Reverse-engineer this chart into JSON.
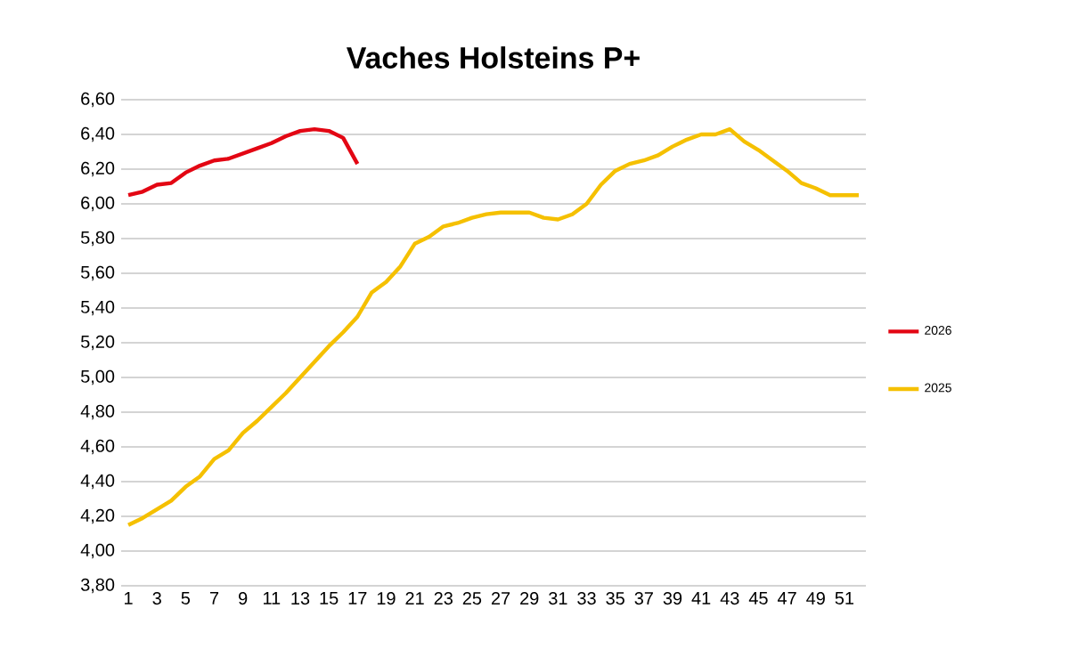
{
  "chart_data": {
    "type": "line",
    "title": "Vaches Holsteins P+",
    "categories": [
      "1",
      null,
      "3",
      null,
      "5",
      null,
      "7",
      null,
      "9",
      null,
      "11",
      null,
      "13",
      null,
      "15",
      null,
      "17",
      null,
      "19",
      null,
      "21",
      null,
      "23",
      null,
      "25",
      null,
      "27",
      null,
      "29",
      null,
      "31",
      null,
      "33",
      null,
      "35",
      null,
      "37",
      null,
      "39",
      null,
      "41",
      null,
      "43",
      null,
      "45",
      null,
      "47",
      null,
      "49",
      null,
      "51",
      null
    ],
    "series": [
      {
        "name": "2026",
        "color": "#e30613",
        "values": [
          6.05,
          6.07,
          6.11,
          6.12,
          6.18,
          6.22,
          6.25,
          6.26,
          6.29,
          6.32,
          6.35,
          6.39,
          6.42,
          6.43,
          6.42,
          6.38,
          6.23,
          null,
          null,
          null,
          null,
          null,
          null,
          null,
          null,
          null,
          null,
          null,
          null,
          null,
          null,
          null,
          null,
          null,
          null,
          null,
          null,
          null,
          null,
          null,
          null,
          null,
          null,
          null,
          null,
          null,
          null,
          null,
          null,
          null,
          null,
          null
        ]
      },
      {
        "name": "2025",
        "color": "#f5c000",
        "values": [
          4.15,
          4.19,
          4.24,
          4.29,
          4.37,
          4.43,
          4.53,
          4.58,
          4.68,
          4.75,
          4.83,
          4.91,
          5.0,
          5.09,
          5.18,
          5.26,
          5.35,
          5.49,
          5.55,
          5.64,
          5.77,
          5.81,
          5.87,
          5.89,
          5.92,
          5.94,
          5.95,
          5.95,
          5.95,
          5.92,
          5.91,
          5.94,
          6.0,
          6.11,
          6.19,
          6.23,
          6.25,
          6.28,
          6.33,
          6.37,
          6.4,
          6.4,
          6.43,
          6.36,
          6.31,
          6.25,
          6.19,
          6.12,
          6.09,
          6.05,
          6.05,
          6.05
        ]
      }
    ],
    "ylim": [
      3.8,
      6.6
    ],
    "yticks": [
      {
        "value": 3.8,
        "label": "3,80"
      },
      {
        "value": 4.0,
        "label": "4,00"
      },
      {
        "value": 4.2,
        "label": "4,20"
      },
      {
        "value": 4.4,
        "label": "4,40"
      },
      {
        "value": 4.6,
        "label": "4,60"
      },
      {
        "value": 4.8,
        "label": "4,80"
      },
      {
        "value": 5.0,
        "label": "5,00"
      },
      {
        "value": 5.2,
        "label": "5,20"
      },
      {
        "value": 5.4,
        "label": "5,40"
      },
      {
        "value": 5.6,
        "label": "5,60"
      },
      {
        "value": 5.8,
        "label": "5,80"
      },
      {
        "value": 6.0,
        "label": "6,00"
      },
      {
        "value": 6.2,
        "label": "6,20"
      },
      {
        "value": 6.4,
        "label": "6,40"
      },
      {
        "value": 6.6,
        "label": "6,60"
      }
    ],
    "grid": "y",
    "legend": "right",
    "marker": "none",
    "line_style": "solid"
  }
}
